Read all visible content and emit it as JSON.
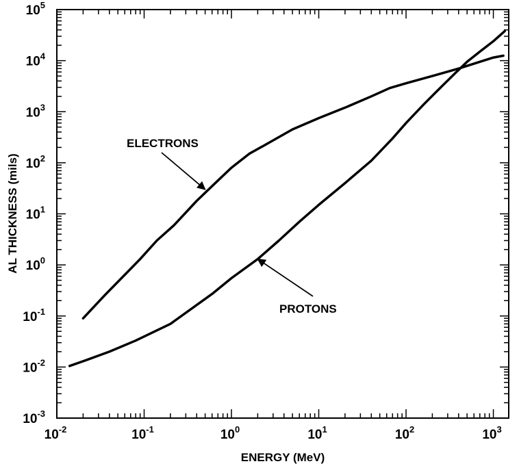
{
  "chart_data": {
    "type": "line",
    "xlabel": "ENERGY (MeV)",
    "ylabel": "AL THICKNESS (mils)",
    "x_scale": "log",
    "y_scale": "log",
    "xlim": [
      0.01,
      1500
    ],
    "ylim": [
      0.001,
      100000
    ],
    "grid": false,
    "x_tick_labels": [
      {
        "base": "10",
        "exp": "-2",
        "value": 0.01
      },
      {
        "base": "10",
        "exp": "-1",
        "value": 0.1
      },
      {
        "base": "10",
        "exp": "0",
        "value": 1
      },
      {
        "base": "10",
        "exp": "1",
        "value": 10
      },
      {
        "base": "10",
        "exp": "2",
        "value": 100
      },
      {
        "base": "10",
        "exp": "3",
        "value": 1000
      }
    ],
    "y_tick_labels": [
      {
        "base": "10",
        "exp": "-3",
        "value": 0.001
      },
      {
        "base": "10",
        "exp": "-2",
        "value": 0.01
      },
      {
        "base": "10",
        "exp": "-1",
        "value": 0.1
      },
      {
        "base": "10",
        "exp": "0",
        "value": 1
      },
      {
        "base": "10",
        "exp": "1",
        "value": 10
      },
      {
        "base": "10",
        "exp": "2",
        "value": 100
      },
      {
        "base": "10",
        "exp": "3",
        "value": 1000
      },
      {
        "base": "10",
        "exp": "4",
        "value": 10000
      },
      {
        "base": "10",
        "exp": "5",
        "value": 100000
      }
    ],
    "series": [
      {
        "key": "electrons",
        "x": [
          0.02,
          0.035,
          0.055,
          0.09,
          0.14,
          0.22,
          0.4,
          0.7,
          1.0,
          1.6,
          2.5,
          5.0,
          10,
          20,
          40,
          65,
          100,
          200,
          400,
          700,
          1000,
          1300
        ],
        "y": [
          0.09,
          0.25,
          0.55,
          1.3,
          3.0,
          6.0,
          18,
          45,
          80,
          150,
          230,
          450,
          750,
          1200,
          2000,
          2900,
          3600,
          5000,
          7000,
          9500,
          11500,
          12500
        ]
      },
      {
        "key": "protons",
        "x": [
          0.014,
          0.02,
          0.04,
          0.08,
          0.2,
          0.6,
          1.0,
          2.0,
          3.5,
          6.0,
          10,
          20,
          40,
          70,
          100,
          160,
          250,
          350,
          500,
          700,
          1000,
          1350
        ],
        "y": [
          0.0105,
          0.013,
          0.02,
          0.033,
          0.07,
          0.27,
          0.55,
          1.3,
          3.0,
          7.0,
          15,
          40,
          110,
          300,
          600,
          1400,
          3000,
          5300,
          9500,
          15000,
          24000,
          38000
        ]
      }
    ],
    "annotations": [
      {
        "text": "ELECTRONS",
        "points_to": {
          "x": 0.5,
          "y": 30
        }
      },
      {
        "text": "PROTONS",
        "points_to": {
          "x": 2.0,
          "y": 1.3
        }
      }
    ]
  }
}
